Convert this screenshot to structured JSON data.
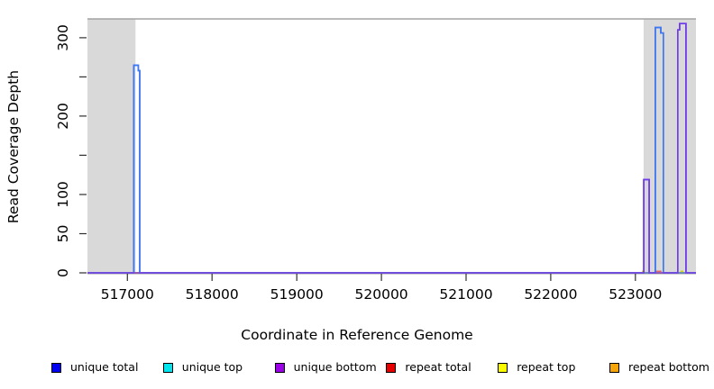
{
  "chart_data": {
    "type": "line",
    "title": "",
    "xlabel": "Coordinate in Reference Genome",
    "ylabel": "Read Coverage Depth",
    "xlim": [
      516528,
      523715
    ],
    "ylim": [
      0,
      324
    ],
    "grid": false,
    "legend_position": "bottom",
    "x_ticks": [
      {
        "v": 517000,
        "label": "517000"
      },
      {
        "v": 518000,
        "label": "518000"
      },
      {
        "v": 519000,
        "label": "519000"
      },
      {
        "v": 520000,
        "label": "520000"
      },
      {
        "v": 521000,
        "label": "521000"
      },
      {
        "v": 522000,
        "label": "522000"
      },
      {
        "v": 523000,
        "label": "523000"
      }
    ],
    "y_ticks": [
      {
        "v": 0,
        "label": "0"
      },
      {
        "v": 50,
        "label": "50"
      },
      {
        "v": 100,
        "label": "100"
      },
      {
        "v": 150,
        "label": ""
      },
      {
        "v": 200,
        "label": "200"
      },
      {
        "v": 250,
        "label": ""
      },
      {
        "v": 300,
        "label": "300"
      }
    ],
    "shaded_regions": [
      {
        "name": "repeat-region-left",
        "x0": 516528,
        "x1": 517096,
        "fill": "#d9d9d9"
      },
      {
        "name": "repeat-region-right",
        "x0": 523096,
        "x1": 523715,
        "fill": "#d9d9d9"
      }
    ],
    "series": [
      {
        "name": "repeat total",
        "stroke": "#e06060",
        "steps": [
          [
            516528,
            0
          ],
          [
            523233,
            2
          ],
          [
            523300,
            0
          ]
        ]
      },
      {
        "name": "repeat top",
        "stroke": "#d6d600",
        "steps": [
          [
            516528,
            0
          ],
          [
            523085,
            2
          ],
          [
            523102,
            0
          ],
          [
            523540,
            2
          ],
          [
            523557,
            0
          ]
        ]
      },
      {
        "name": "repeat bottom",
        "stroke": "#f0a020",
        "steps": [
          [
            516528,
            0
          ]
        ]
      },
      {
        "name": "unique total",
        "stroke": "#2222ee",
        "steps": [
          [
            516528,
            0
          ],
          [
            517075,
            265
          ],
          [
            517128,
            258
          ],
          [
            517146,
            0
          ],
          [
            523098,
            119
          ],
          [
            523162,
            0
          ],
          [
            523235,
            313
          ],
          [
            523300,
            306
          ],
          [
            523330,
            0
          ],
          [
            523500,
            310
          ],
          [
            523522,
            318
          ],
          [
            523597,
            0
          ]
        ]
      },
      {
        "name": "unique top",
        "stroke": "#3d82f0",
        "steps": [
          [
            516528,
            0
          ],
          [
            517075,
            265
          ],
          [
            517128,
            258
          ],
          [
            517146,
            0
          ],
          [
            523235,
            313
          ],
          [
            523300,
            306
          ],
          [
            523330,
            0
          ]
        ]
      },
      {
        "name": "unique bottom",
        "stroke": "#7a3ce8",
        "steps": [
          [
            516528,
            0
          ],
          [
            523098,
            119
          ],
          [
            523162,
            0
          ],
          [
            523500,
            310
          ],
          [
            523522,
            318
          ],
          [
            523597,
            0
          ]
        ]
      }
    ],
    "legend": [
      {
        "label": "unique total",
        "swatch": "#0000f2"
      },
      {
        "label": "unique top",
        "swatch": "#00e5ee"
      },
      {
        "label": "unique bottom",
        "swatch": "#9b00e8"
      },
      {
        "label": "repeat total",
        "swatch": "#e60000"
      },
      {
        "label": "repeat top",
        "swatch": "#fbfb00"
      },
      {
        "label": "repeat bottom",
        "swatch": "#f5a40a"
      }
    ]
  }
}
